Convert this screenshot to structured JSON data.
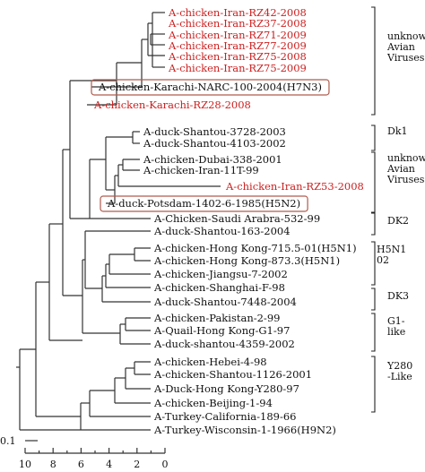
{
  "leaves": [
    {
      "label": "A-chicken-Iran-RZ42-2008",
      "color": "#cc1f1f"
    },
    {
      "label": "A-chicken-Iran-RZ37-2008",
      "color": "#cc1f1f"
    },
    {
      "label": "A-chicken-Iran-RZ71-2009",
      "color": "#cc1f1f"
    },
    {
      "label": "A-chicken-Iran-RZ77-2009",
      "color": "#cc1f1f"
    },
    {
      "label": "A-chicken-Iran-RZ75-2008",
      "color": "#cc1f1f"
    },
    {
      "label": "A-chicken-Iran-RZ75-2009",
      "color": "#cc1f1f"
    },
    {
      "label": "A-chicken-Karachi-NARC-100-2004(H7N3)",
      "color": "#111111",
      "boxed": true
    },
    {
      "label": "A-chicken-Karachi-RZ28-2008",
      "color": "#cc1f1f"
    },
    {
      "label": "A-duck-Shantou-3728-2003",
      "color": "#111111"
    },
    {
      "label": "A-duck-Shantou-4103-2002",
      "color": "#111111"
    },
    {
      "label": "A-chicken-Dubai-338-2001",
      "color": "#111111"
    },
    {
      "label": "A-chicken-Iran-11T-99",
      "color": "#111111"
    },
    {
      "label": "A-chicken-Iran-RZ53-2008",
      "color": "#cc1f1f"
    },
    {
      "label": "A-duck-Potsdam-1402-6-1985(H5N2)",
      "color": "#111111",
      "boxed": true
    },
    {
      "label": "A-Chicken-Saudi Arabra-532-99",
      "color": "#111111"
    },
    {
      "label": "A-duck-Shantou-163-2004",
      "color": "#111111"
    },
    {
      "label": "A-chicken-Hong Kong-715.5-01(H5N1)",
      "color": "#111111"
    },
    {
      "label": "A-chicken-Hong Kong-873.3(H5N1)",
      "color": "#111111"
    },
    {
      "label": "A-chicken-Jiangsu-7-2002",
      "color": "#111111"
    },
    {
      "label": "A-chicken-Shanghai-F-98",
      "color": "#111111"
    },
    {
      "label": "A-duck-Shantou-7448-2004",
      "color": "#111111"
    },
    {
      "label": "A-chicken-Pakistan-2-99",
      "color": "#111111"
    },
    {
      "label": "A-Quail-Hong Kong-G1-97",
      "color": "#111111"
    },
    {
      "label": "A-duck-shantou-4359-2002",
      "color": "#111111"
    },
    {
      "label": "A-chicken-Hebei-4-98",
      "color": "#111111"
    },
    {
      "label": "A-chicken-Shantou-1126-2001",
      "color": "#111111"
    },
    {
      "label": "A-Duck-Hong Kong-Y280-97",
      "color": "#111111"
    },
    {
      "label": "A-chicken-Beijing-1-94",
      "color": "#111111"
    },
    {
      "label": "A-Turkey-California-189-66",
      "color": "#111111"
    },
    {
      "label": "A-Turkey-Wisconsin-1-1966(H9N2)",
      "color": "#111111"
    }
  ],
  "clades": [
    {
      "lines": [
        "unknown",
        "Avian",
        "Viruses"
      ]
    },
    {
      "lines": [
        "Dk1"
      ]
    },
    {
      "lines": [
        "unknown",
        "Avian",
        "Viruses"
      ]
    },
    {
      "lines": [
        "DK2"
      ]
    },
    {
      "lines": [
        "H5N1",
        "02"
      ]
    },
    {
      "lines": [
        "DK3"
      ]
    },
    {
      "lines": [
        "G1-",
        "like"
      ]
    },
    {
      "lines": [
        "Y280",
        "-Like"
      ]
    }
  ],
  "scale_label": "0.1",
  "axis_ticks": [
    "10",
    "8",
    "6",
    "4",
    "2",
    "0"
  ]
}
